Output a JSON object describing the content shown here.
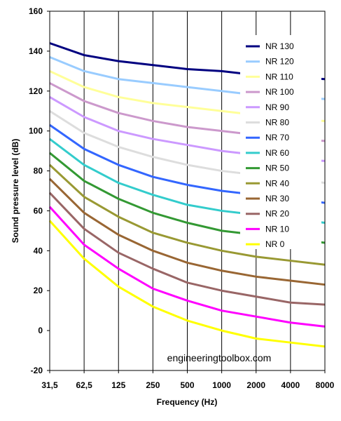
{
  "chart_data": {
    "type": "line",
    "title": "",
    "xlabel": "Frequency (Hz)",
    "ylabel": "Sound pressure level (dB)",
    "x_categories": [
      "31,5",
      "62,5",
      "125",
      "250",
      "500",
      "1000",
      "2000",
      "4000",
      "8000"
    ],
    "ylim": [
      -20,
      160
    ],
    "yticks": [
      "-20",
      "0",
      "20",
      "40",
      "60",
      "80",
      "100",
      "120",
      "140",
      "160"
    ],
    "grid": true,
    "legend_position": "top-right",
    "watermark": "engineeringtoolbox.com",
    "series": [
      {
        "name": "NR 130",
        "color": "#000080",
        "values": [
          144,
          138,
          135,
          133,
          131,
          130,
          128,
          127,
          126
        ]
      },
      {
        "name": "NR 120",
        "color": "#99ccff",
        "values": [
          137,
          130,
          126,
          124,
          122,
          120,
          118,
          117,
          116
        ]
      },
      {
        "name": "NR 110",
        "color": "#ffff99",
        "values": [
          130,
          122,
          117,
          114,
          112,
          110,
          108,
          106,
          105
        ]
      },
      {
        "name": "NR 100",
        "color": "#cc99cc",
        "values": [
          124,
          115,
          109,
          105,
          102,
          100,
          98,
          96,
          95
        ]
      },
      {
        "name": "NR 90",
        "color": "#cc99ff",
        "values": [
          117,
          107,
          100,
          96,
          93,
          90,
          88,
          86,
          85
        ]
      },
      {
        "name": "NR 80",
        "color": "#dddddd",
        "values": [
          110,
          99,
          92,
          87,
          83,
          80,
          78,
          76,
          74
        ]
      },
      {
        "name": "NR 70",
        "color": "#3366ff",
        "values": [
          103,
          91,
          83,
          77,
          73,
          70,
          68,
          66,
          64
        ]
      },
      {
        "name": "NR 60",
        "color": "#33cccc",
        "values": [
          96,
          83,
          74,
          68,
          63,
          60,
          58,
          56,
          54
        ]
      },
      {
        "name": "NR 50",
        "color": "#339933",
        "values": [
          89,
          75,
          66,
          59,
          54,
          50,
          48,
          46,
          44
        ]
      },
      {
        "name": "NR 40",
        "color": "#999933",
        "values": [
          83,
          67,
          57,
          49,
          44,
          40,
          37,
          35,
          33
        ]
      },
      {
        "name": "NR 30",
        "color": "#996633",
        "values": [
          76,
          59,
          48,
          40,
          34,
          30,
          27,
          25,
          23
        ]
      },
      {
        "name": "NR 20",
        "color": "#996666",
        "values": [
          69,
          51,
          39,
          31,
          24,
          20,
          17,
          14,
          13
        ]
      },
      {
        "name": "NR 10",
        "color": "#ff00ff",
        "values": [
          62,
          43,
          31,
          21,
          15,
          10,
          7,
          4,
          2
        ]
      },
      {
        "name": "NR 0",
        "color": "#ffff00",
        "values": [
          55,
          36,
          22,
          12,
          5,
          0,
          -4,
          -6,
          -8
        ]
      }
    ]
  }
}
